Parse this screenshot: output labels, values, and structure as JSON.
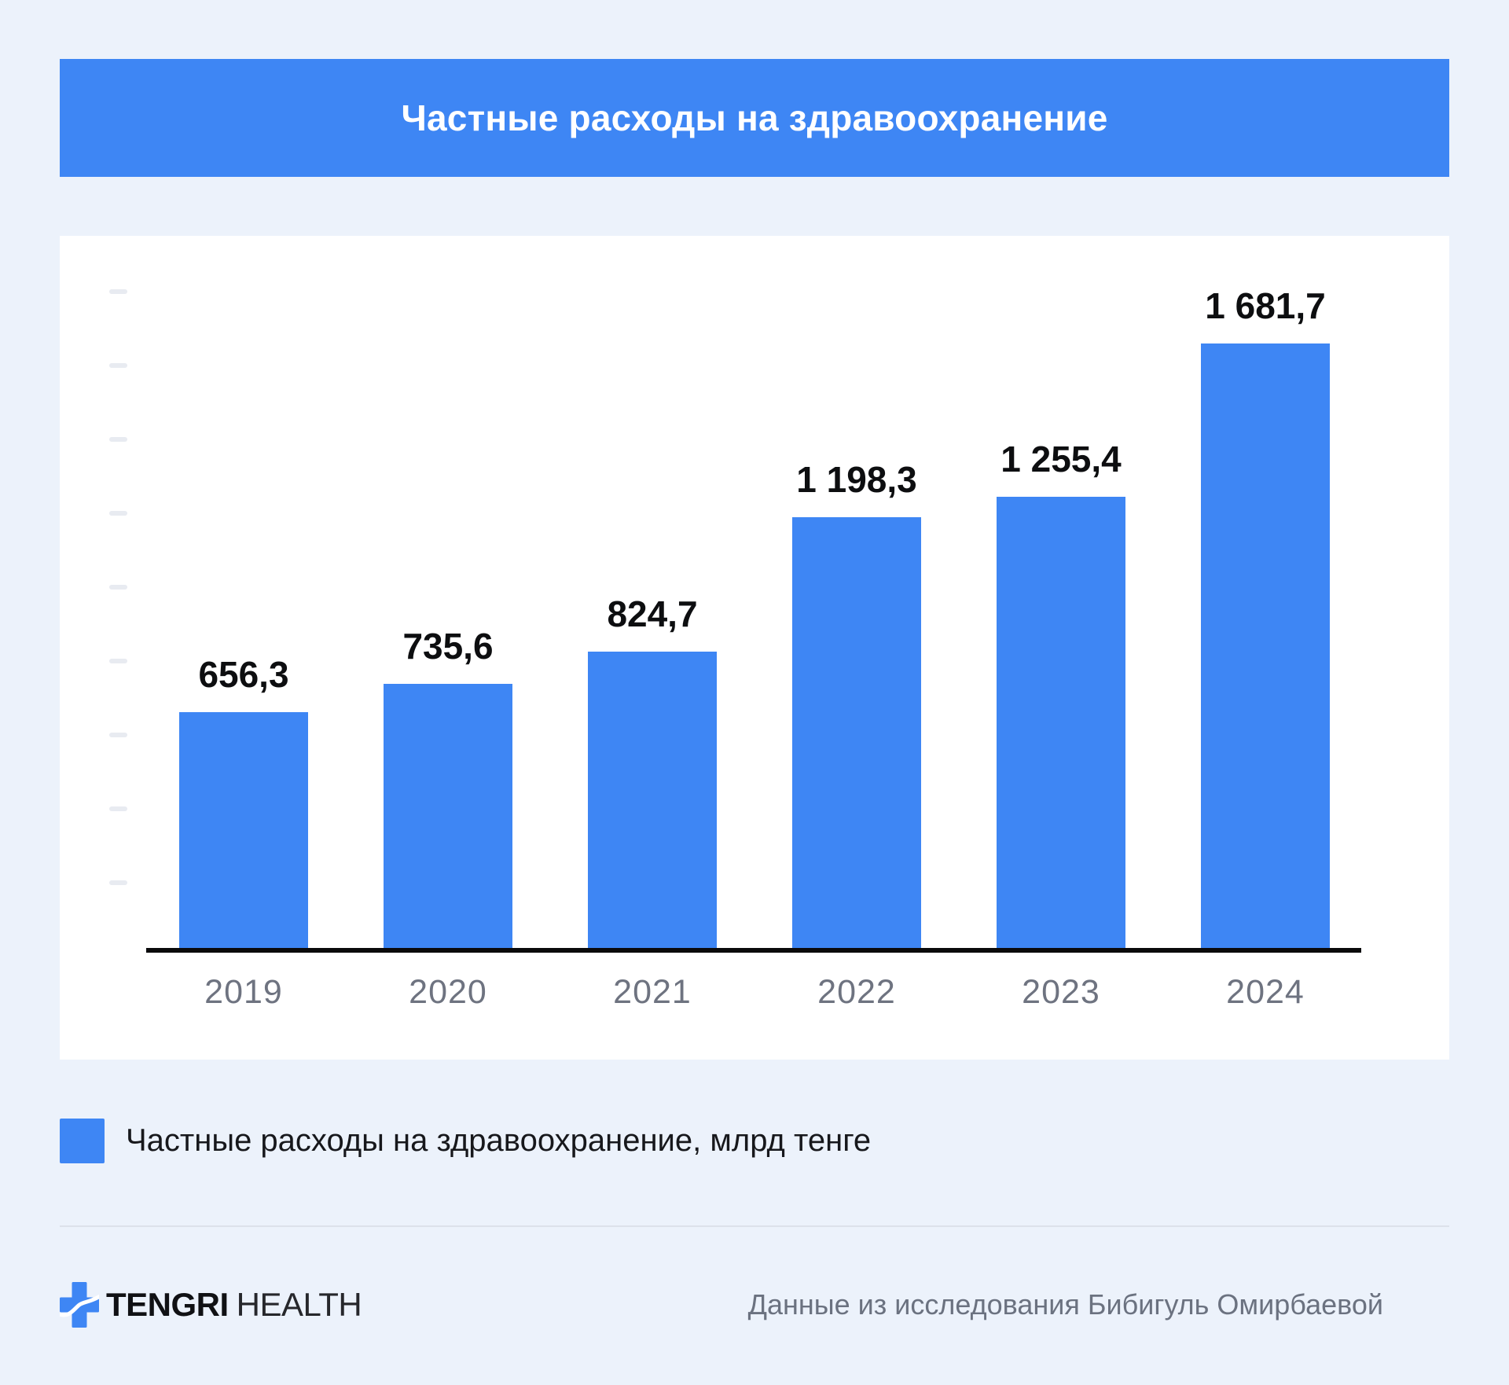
{
  "page": {
    "background_color": "#ECF2FB",
    "accent_color": "#3E86F4"
  },
  "header": {
    "title": "Частные расходы на здравоохранение"
  },
  "chart_data": {
    "type": "bar",
    "title": "Частные расходы на здравоохранение",
    "categories": [
      "2019",
      "2020",
      "2021",
      "2022",
      "2023",
      "2024"
    ],
    "values": [
      656.3,
      735.6,
      824.7,
      1198.3,
      1255.4,
      1681.7
    ],
    "value_labels": [
      "656,3",
      "735,6",
      "824,7",
      "1 198,3",
      "1 255,4",
      "1 681,7"
    ],
    "series_name": "Частные расходы на здравоохранение, млрд тенге",
    "unit": "млрд тенге",
    "xlabel": "",
    "ylabel": "",
    "ylim": [
      0,
      1880
    ],
    "grid": false,
    "y_axis_tick_count": 9,
    "bar_color": "#3E86F4",
    "legend_position": "bottom-left"
  },
  "legend": {
    "label": "Частные расходы на здравоохранение, млрд тенге",
    "swatch_color": "#3E86F4"
  },
  "footer": {
    "brand_primary": "TENGRI",
    "brand_secondary": "HEALTH",
    "attribution": "Данные из исследования Бибигуль Омирбаевой"
  }
}
